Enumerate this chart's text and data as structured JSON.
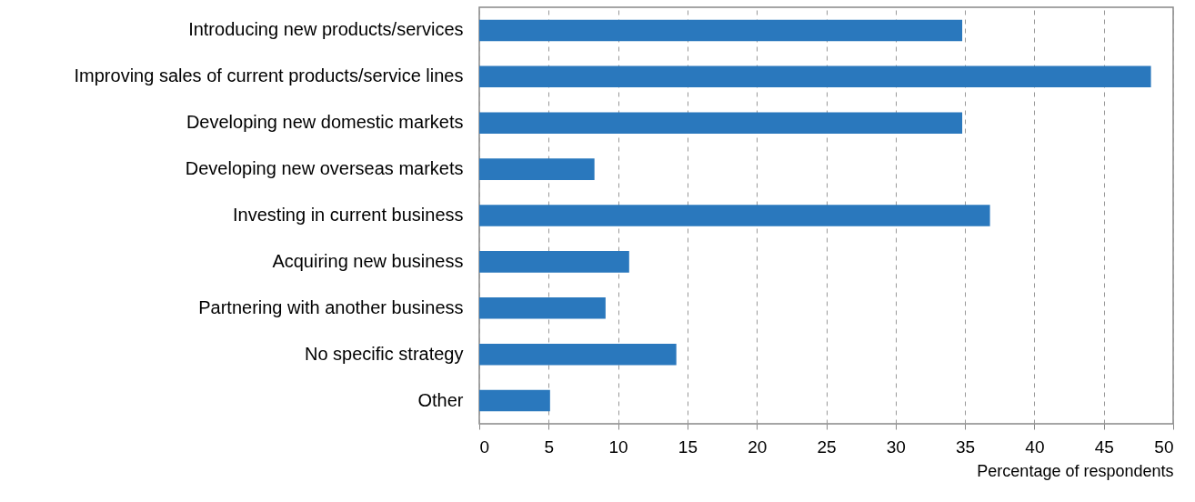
{
  "chart_data": {
    "type": "bar",
    "orientation": "horizontal",
    "xlabel": "Percentage of respondents",
    "categories": [
      "Introducing new products/services",
      "Improving sales of current products/service lines",
      "Developing new domestic markets",
      "Developing new overseas markets",
      "Investing in current business",
      "Acquiring new business",
      "Partnering with another business",
      "No specific strategy",
      "Other"
    ],
    "values": [
      34.8,
      48.4,
      34.8,
      8.3,
      36.8,
      10.8,
      9.1,
      14.2,
      5.1
    ],
    "color": "#2a78bd",
    "xlim": [
      0,
      50
    ],
    "xticks": [
      0,
      5,
      10,
      15,
      20,
      25,
      30,
      35,
      40,
      45,
      50
    ],
    "grid": "x"
  }
}
